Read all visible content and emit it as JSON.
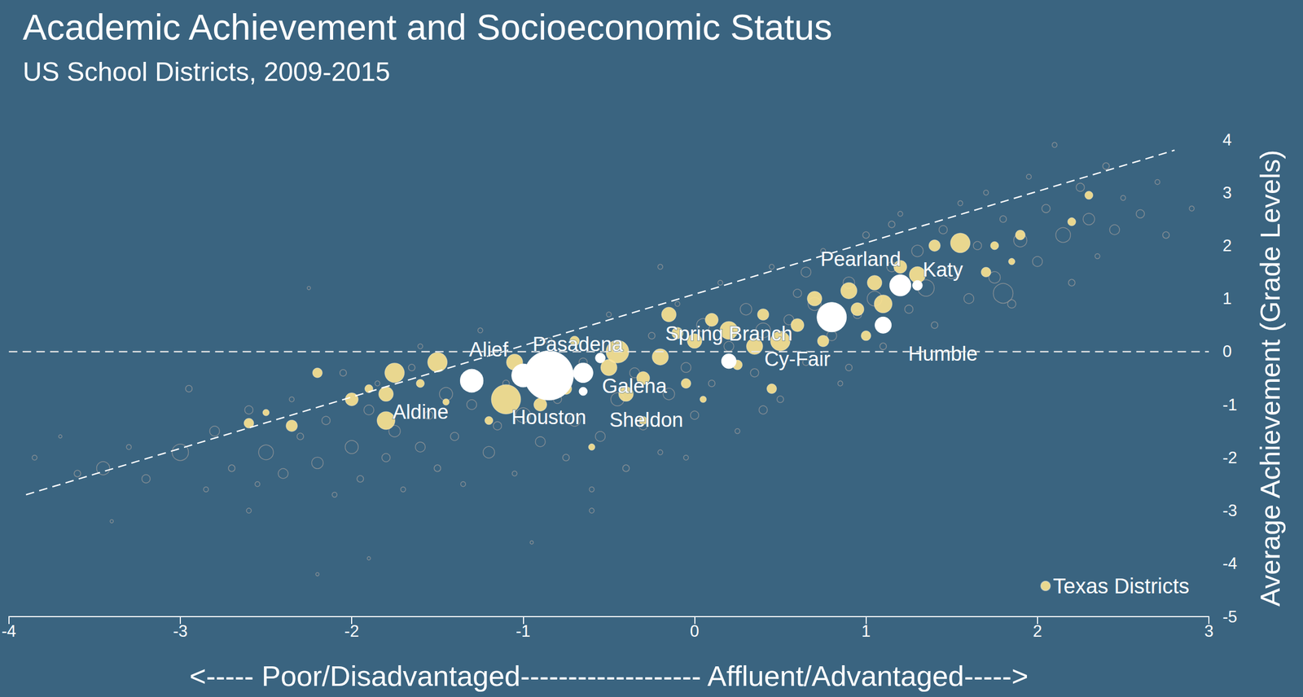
{
  "chart_data": {
    "type": "scatter",
    "title": "Academic Achievement and Socioeconomic Status",
    "subtitle": "US School Districts, 2009-2015",
    "x_label": "<----- Poor/Disadvantaged------------------- Affluent/Advantaged----->",
    "y_label": "Average Achievement (Grade Levels)",
    "xlim": [
      -4,
      3
    ],
    "xticks": [
      -4,
      -3,
      -2,
      -1,
      0,
      1,
      2,
      3
    ],
    "ylim": [
      -5,
      4
    ],
    "yticks": [
      -5,
      -4,
      -3,
      -2,
      -1,
      0,
      1,
      2,
      3,
      4
    ],
    "grid": false,
    "legend": "bottom right",
    "series": [
      {
        "color": "#9a9a9a",
        "marker": "hollow",
        "x": [
          -3.85,
          -3.7,
          -3.6,
          -3.45,
          -3.3,
          -3.2,
          -3.0,
          -2.95,
          -2.85,
          -2.8,
          -2.7,
          -2.6,
          -2.55,
          -2.5,
          -2.4,
          -2.35,
          -2.3,
          -2.25,
          -2.2,
          -2.15,
          -2.1,
          -2.05,
          -2.0,
          -1.95,
          -1.9,
          -1.85,
          -1.8,
          -1.75,
          -1.7,
          -1.65,
          -1.6,
          -1.55,
          -1.5,
          -1.45,
          -1.4,
          -1.35,
          -1.3,
          -1.25,
          -1.2,
          -1.15,
          -1.1,
          -1.05,
          -1.0,
          -0.95,
          -0.9,
          -0.85,
          -0.8,
          -0.75,
          -0.7,
          -0.65,
          -0.6,
          -0.55,
          -0.5,
          -0.45,
          -0.4,
          -0.35,
          -0.3,
          -0.25,
          -0.2,
          -0.15,
          -0.1,
          -0.05,
          0.0,
          0.05,
          0.1,
          0.15,
          0.2,
          0.25,
          0.3,
          0.35,
          0.4,
          0.45,
          0.5,
          0.55,
          0.6,
          0.65,
          0.7,
          0.75,
          0.8,
          0.85,
          0.9,
          0.95,
          1.0,
          1.05,
          1.1,
          1.15,
          1.2,
          1.25,
          1.3,
          1.35,
          1.4,
          1.45,
          1.5,
          1.55,
          1.6,
          1.65,
          1.7,
          1.75,
          1.8,
          1.85,
          1.9,
          1.95,
          2.0,
          2.05,
          2.1,
          2.15,
          2.2,
          2.25,
          2.3,
          2.35,
          2.4,
          2.45,
          2.5,
          2.6,
          2.7,
          2.75,
          2.9,
          -0.6,
          -1.9,
          -2.2,
          0.4,
          -0.2,
          0.9,
          -1.6,
          1.8,
          -3.4,
          -0.05,
          1.15,
          -2.6,
          0.65
        ],
        "y": [
          -2.0,
          -1.6,
          -2.3,
          -2.2,
          -1.8,
          -2.4,
          -1.9,
          -0.7,
          -2.6,
          -1.5,
          -2.2,
          -1.1,
          -2.5,
          -1.9,
          -2.3,
          -0.9,
          -1.6,
          1.2,
          -2.1,
          -1.3,
          -2.7,
          -0.4,
          -1.8,
          -2.4,
          -1.1,
          -0.6,
          -2.0,
          -1.5,
          -2.6,
          -0.3,
          -1.8,
          -1.2,
          -2.2,
          -0.8,
          -1.6,
          -2.5,
          -1.0,
          0.4,
          -1.9,
          -1.4,
          -0.6,
          -2.3,
          -1.2,
          -3.6,
          -1.7,
          0.2,
          -0.9,
          -2.0,
          -1.3,
          -0.2,
          -2.6,
          -1.6,
          0.7,
          -0.9,
          -2.2,
          -0.4,
          -1.4,
          0.3,
          -1.9,
          -0.8,
          0.9,
          -0.3,
          -1.2,
          0.5,
          -0.6,
          1.3,
          0.1,
          -1.5,
          0.8,
          -0.4,
          0.4,
          1.6,
          -0.9,
          0.6,
          1.1,
          -0.2,
          0.9,
          1.9,
          0.3,
          -0.6,
          1.3,
          0.7,
          2.2,
          1.0,
          0.1,
          1.6,
          2.6,
          0.8,
          1.9,
          1.2,
          0.5,
          2.3,
          1.5,
          2.8,
          1.0,
          2.0,
          3.0,
          1.4,
          2.5,
          0.9,
          2.1,
          3.3,
          1.7,
          2.7,
          3.9,
          2.2,
          1.3,
          3.1,
          2.5,
          1.8,
          3.5,
          2.3,
          2.9,
          2.6,
          3.2,
          2.2,
          2.7,
          -3.0,
          -3.9,
          -4.2,
          -1.1,
          1.6,
          -0.3,
          0.1,
          1.1,
          -3.2,
          -2.0,
          2.4,
          -3.0,
          1.5
        ],
        "size": [
          3,
          2,
          4,
          8,
          3,
          5,
          10,
          4,
          3,
          6,
          4,
          5,
          3,
          9,
          6,
          3,
          4,
          2,
          7,
          5,
          3,
          4,
          8,
          4,
          6,
          3,
          5,
          7,
          3,
          4,
          6,
          5,
          4,
          8,
          5,
          3,
          6,
          3,
          7,
          5,
          4,
          3,
          9,
          2,
          6,
          4,
          5,
          4,
          7,
          5,
          3,
          6,
          3,
          8,
          4,
          6,
          5,
          4,
          3,
          7,
          3,
          6,
          5,
          8,
          4,
          3,
          6,
          3,
          7,
          5,
          9,
          3,
          4,
          6,
          5,
          4,
          8,
          3,
          6,
          3,
          7,
          5,
          4,
          9,
          4,
          6,
          3,
          5,
          7,
          10,
          4,
          5,
          8,
          3,
          6,
          5,
          3,
          7,
          4,
          5,
          8,
          3,
          6,
          5,
          3,
          9,
          4,
          5,
          7,
          3,
          4,
          6,
          3,
          5,
          3,
          4,
          3,
          3,
          2,
          2,
          5,
          3,
          4,
          3,
          12,
          2,
          3,
          4,
          3,
          6
        ]
      },
      {
        "name": "Texas Districts",
        "color": "#fde390",
        "marker": "filled",
        "x": [
          -2.6,
          -2.5,
          -2.35,
          -2.2,
          -2.0,
          -1.9,
          -1.8,
          -1.8,
          -1.75,
          -1.6,
          -1.5,
          -1.45,
          -1.1,
          -1.05,
          -0.9,
          -0.75,
          -0.5,
          -0.45,
          -0.4,
          -0.3,
          -0.2,
          -0.1,
          -0.05,
          0.0,
          0.05,
          0.1,
          0.2,
          0.35,
          0.4,
          0.5,
          0.45,
          0.6,
          0.7,
          0.75,
          0.9,
          0.95,
          1.0,
          1.05,
          1.1,
          1.2,
          1.3,
          1.4,
          1.55,
          1.7,
          1.75,
          1.85,
          1.9,
          2.2,
          2.3,
          -1.2,
          -0.6,
          -0.3,
          -0.15,
          0.25,
          -0.7
        ],
        "y": [
          -1.35,
          -1.15,
          -1.4,
          -0.4,
          -0.9,
          -0.7,
          -0.8,
          -1.3,
          -0.4,
          -0.6,
          -0.2,
          -0.95,
          -0.9,
          -0.2,
          -1.0,
          -0.7,
          -0.3,
          0.0,
          -0.8,
          -0.5,
          -0.1,
          0.35,
          -0.6,
          0.2,
          -0.9,
          0.6,
          0.4,
          0.1,
          0.7,
          0.2,
          -0.7,
          0.5,
          1.0,
          0.2,
          1.15,
          0.8,
          0.3,
          1.3,
          0.9,
          1.6,
          1.45,
          2.0,
          2.05,
          1.5,
          2.0,
          1.7,
          2.2,
          2.45,
          2.95,
          -1.3,
          -1.8,
          -1.3,
          0.7,
          -0.25,
          0.2
        ],
        "size": [
          6,
          4,
          7,
          6,
          8,
          5,
          9,
          11,
          12,
          5,
          12,
          4,
          18,
          10,
          8,
          7,
          10,
          14,
          9,
          8,
          10,
          7,
          6,
          9,
          4,
          8,
          11,
          10,
          7,
          12,
          6,
          8,
          9,
          7,
          10,
          8,
          6,
          9,
          11,
          8,
          10,
          7,
          12,
          6,
          5,
          4,
          6,
          5,
          5,
          5,
          4,
          5,
          9,
          6,
          6
        ]
      },
      {
        "color": "#ffffff",
        "marker": "filled",
        "labels": [
          "Aldine",
          "Alief",
          "Houston",
          "Pasadena",
          "Galena",
          "Sheldon",
          "Spring Branch",
          "Cy-Fair",
          "Pearland",
          "Katy",
          "Humble"
        ],
        "x": [
          -1.0,
          -1.3,
          -0.85,
          -0.65,
          -0.65,
          -0.55,
          0.2,
          0.8,
          1.2,
          1.3,
          1.1
        ],
        "y": [
          -0.45,
          -0.55,
          -0.45,
          -0.4,
          -0.75,
          -0.12,
          -0.18,
          0.65,
          1.25,
          1.25,
          0.5
        ],
        "size": [
          14,
          14,
          30,
          12,
          5,
          6,
          9,
          18,
          13,
          6,
          10
        ]
      }
    ],
    "lines": [
      {
        "x": [
          -3.9,
          2.8
        ],
        "y": [
          -2.7,
          3.8
        ],
        "line_style": "dashed",
        "color": "#ffffff"
      },
      {
        "x": [
          -4,
          3
        ],
        "y": [
          0,
          0
        ],
        "line_style": "dashed",
        "color": "#e6e6e6"
      }
    ]
  }
}
